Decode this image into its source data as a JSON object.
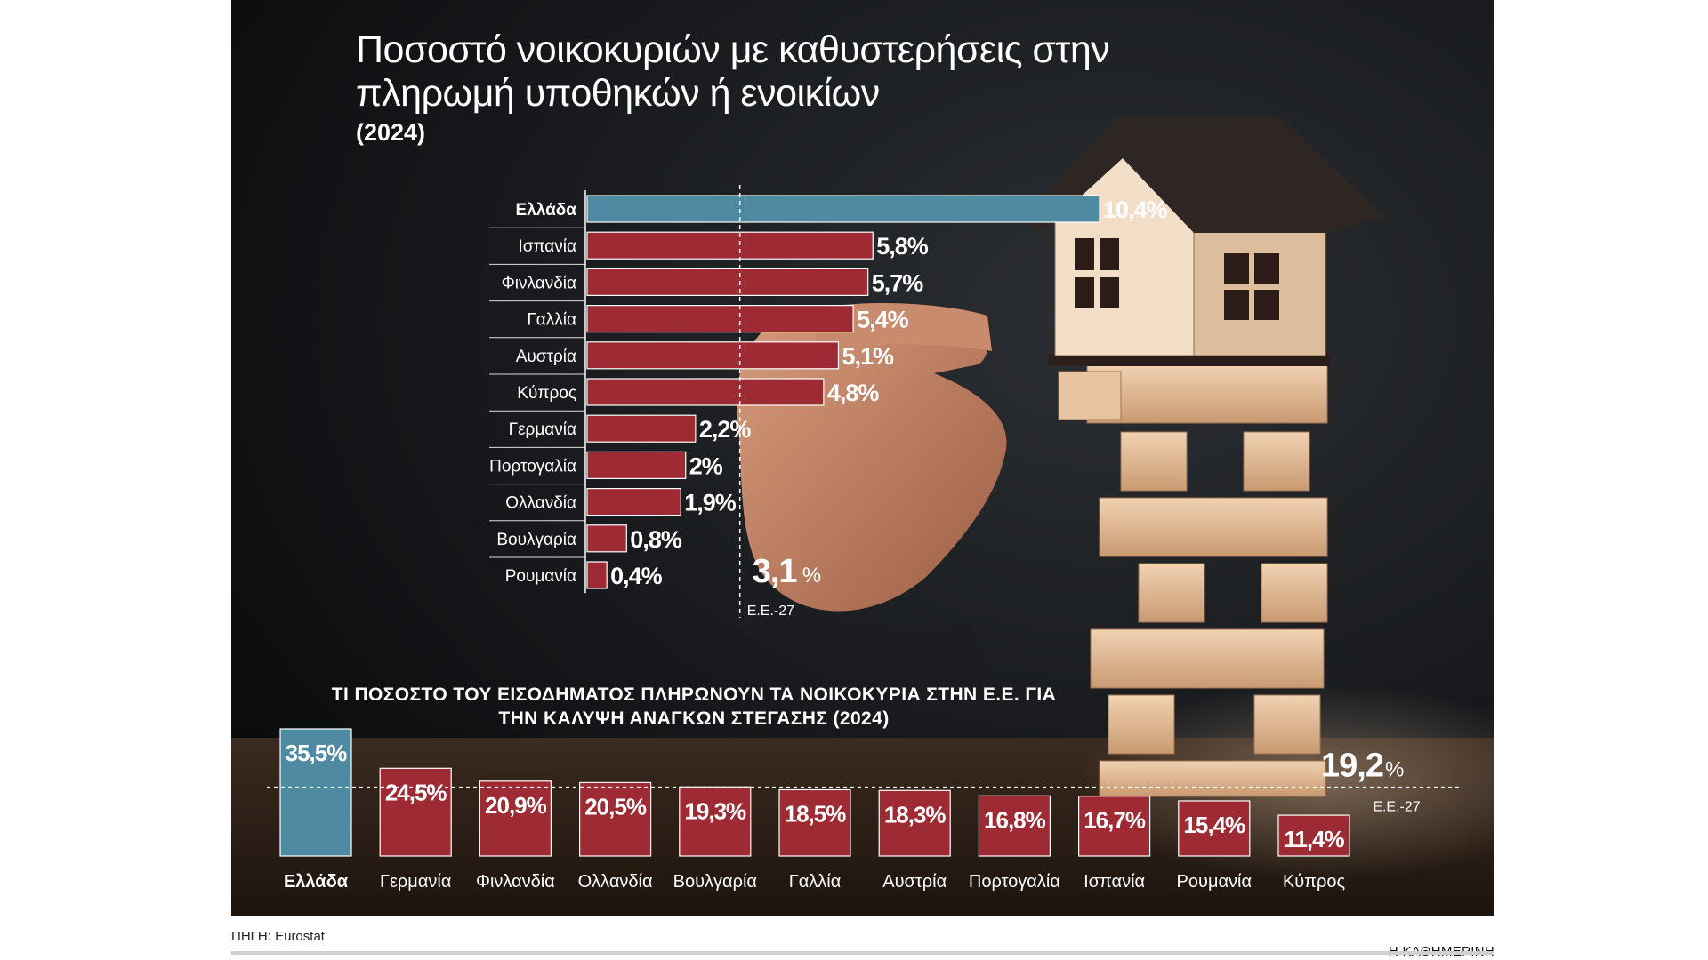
{
  "title": "Ποσοστό νοικοκυριών με καθυστερήσεις στην πληρωμή υποθηκών ή ενοικίων",
  "year_label": "(2024)",
  "source": "ΠΗΓΗ: Eurostat",
  "brand": "Η ΚΑΘΗΜΕΡΙΝΗ",
  "colors": {
    "highlight": "#4f8aa3",
    "bar": "#9e2a33",
    "text": "#ffffff"
  },
  "chart_data": [
    {
      "type": "bar",
      "orientation": "horizontal",
      "title": "Ποσοστό νοικοκυριών με καθυστερήσεις στην πληρωμή υποθηκών ή ενοικίων",
      "subtitle": "(2024)",
      "categories": [
        "Ελλάδα",
        "Ισπανία",
        "Φινλανδία",
        "Γαλλία",
        "Αυστρία",
        "Κύπρος",
        "Γερμανία",
        "Πορτογαλία",
        "Ολλανδία",
        "Βουλγαρία",
        "Ρουμανία"
      ],
      "values": [
        10.4,
        5.8,
        5.7,
        5.4,
        5.1,
        4.8,
        2.2,
        2.0,
        1.9,
        0.8,
        0.4
      ],
      "value_labels": [
        "10,4%",
        "5,8%",
        "5,7%",
        "5,4%",
        "5,1%",
        "4,8%",
        "2,2%",
        "2%",
        "1,9%",
        "0,8%",
        "0,4%"
      ],
      "highlight": "Ελλάδα",
      "reference": {
        "value": 3.1,
        "number_label": "3,1",
        "unit": "%",
        "label": "Ε.Ε.-27"
      },
      "xlim": [
        0,
        10.4
      ]
    },
    {
      "type": "bar",
      "orientation": "vertical",
      "title": "ΤΙ ΠΟΣΟΣΤΟ ΤΟΥ ΕΙΣΟΔΗΜΑΤΟΣ ΠΛΗΡΩΝΟΥΝ ΤΑ ΝΟΙΚΟΚΥΡΙΑ ΣΤΗΝ Ε.Ε. ΓΙΑ ΤΗΝ ΚΑΛΥΨΗ ΑΝΑΓΚΩΝ ΣΤΕΓΑΣΗΣ (2024)",
      "categories": [
        "Ελλάδα",
        "Γερμανία",
        "Φινλανδία",
        "Ολλανδία",
        "Βουλγαρία",
        "Γαλλία",
        "Αυστρία",
        "Πορτογαλία",
        "Ισπανία",
        "Ρουμανία",
        "Κύπρος"
      ],
      "values": [
        35.5,
        24.5,
        20.9,
        20.5,
        19.3,
        18.5,
        18.3,
        16.8,
        16.7,
        15.4,
        11.4
      ],
      "value_labels": [
        "35,5%",
        "24,5%",
        "20,9%",
        "20,5%",
        "19,3%",
        "18,5%",
        "18,3%",
        "16,8%",
        "16,7%",
        "15,4%",
        "11,4%"
      ],
      "highlight": "Ελλάδα",
      "reference": {
        "value": 19.2,
        "number_label": "19,2",
        "unit": "%",
        "label": "Ε.Ε.-27"
      },
      "ylim": [
        0,
        35.5
      ]
    }
  ]
}
